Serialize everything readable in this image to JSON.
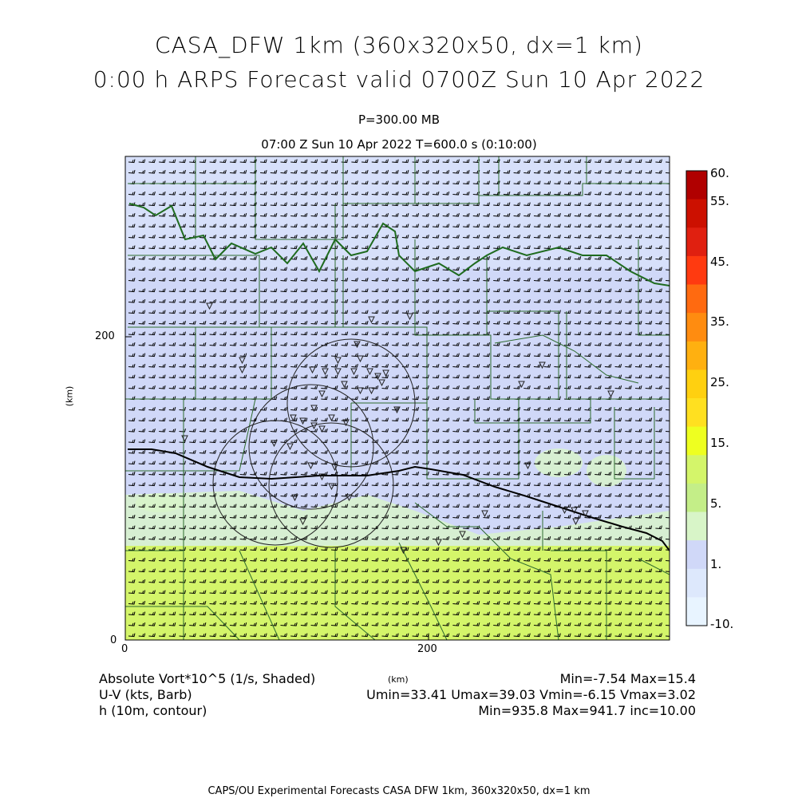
{
  "title": {
    "line1": "CASA_DFW 1km (360x320x50, dx=1 km)",
    "line2": "0:00 h ARPS Forecast valid 0700Z Sun 10 Apr 2022"
  },
  "subtitle": {
    "level": "P=300.00 MB",
    "time": "07:00 Z Sun 10 Apr 2022    T=600.0 s (0:10:00)"
  },
  "axes": {
    "unit": "(km)",
    "x_ticks": [
      "0",
      "200"
    ],
    "y_ticks": [
      "0",
      "200"
    ]
  },
  "colorbar": {
    "labels": [
      "60.",
      "55.",
      "45.",
      "35.",
      "25.",
      "15.",
      "5.",
      "1.",
      "-10."
    ],
    "colors": [
      "#b00000",
      "#cc1000",
      "#e02010",
      "#ff3a10",
      "#ff6a10",
      "#ff8c10",
      "#ffb010",
      "#ffd010",
      "#ffe020",
      "#eeff20",
      "#d4f56a",
      "#c4ee88",
      "#d8f5c8",
      "#d0d8f8",
      "#dde8fc",
      "#e8f4ff"
    ]
  },
  "legend": {
    "field1": "Absolute Vort*10^5 (1/s, Shaded)",
    "field2": "U-V (kts, Barb)",
    "field3": "h (10m, contour)",
    "xunit": "(km)",
    "stats1": "Min=-7.54 Max=15.4",
    "stats2": "Umin=33.41 Umax=39.03 Vmin=-6.15 Vmax=3.02",
    "stats3": "Min=935.8 Max=941.7 inc=10.00"
  },
  "footer": "CAPS/OU Experimental Forecasts  CASA DFW 1km, 360x320x50, dx=1 km"
}
